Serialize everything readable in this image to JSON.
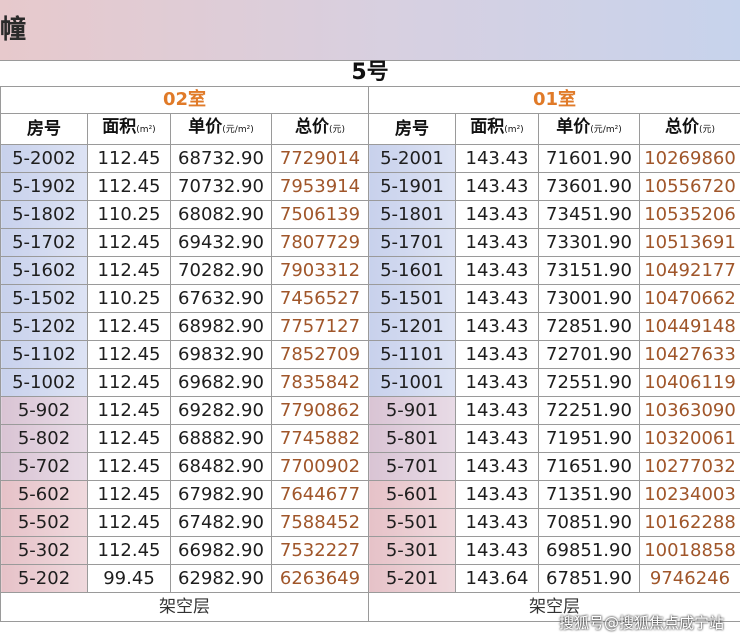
{
  "header": {
    "building_label": "幢",
    "building_number": "5号"
  },
  "units": [
    {
      "name": "02室"
    },
    {
      "name": "01室"
    }
  ],
  "columns": {
    "room": "房号",
    "area": "面积",
    "area_unit": "(m²)",
    "unit_price": "单价",
    "unit_price_unit": "(元/m²)",
    "total_price": "总价",
    "total_price_unit": "(元)"
  },
  "rows": [
    {
      "l_room": "5-2002",
      "l_area": "112.45",
      "l_unit": "68732.90",
      "l_total": "7729014",
      "r_room": "5-2001",
      "r_area": "143.43",
      "r_unit": "71601.90",
      "r_total": "10269860"
    },
    {
      "l_room": "5-1902",
      "l_area": "112.45",
      "l_unit": "70732.90",
      "l_total": "7953914",
      "r_room": "5-1901",
      "r_area": "143.43",
      "r_unit": "73601.90",
      "r_total": "10556720"
    },
    {
      "l_room": "5-1802",
      "l_area": "110.25",
      "l_unit": "68082.90",
      "l_total": "7506139",
      "r_room": "5-1801",
      "r_area": "143.43",
      "r_unit": "73451.90",
      "r_total": "10535206"
    },
    {
      "l_room": "5-1702",
      "l_area": "112.45",
      "l_unit": "69432.90",
      "l_total": "7807729",
      "r_room": "5-1701",
      "r_area": "143.43",
      "r_unit": "73301.90",
      "r_total": "10513691"
    },
    {
      "l_room": "5-1602",
      "l_area": "112.45",
      "l_unit": "70282.90",
      "l_total": "7903312",
      "r_room": "5-1601",
      "r_area": "143.43",
      "r_unit": "73151.90",
      "r_total": "10492177"
    },
    {
      "l_room": "5-1502",
      "l_area": "110.25",
      "l_unit": "67632.90",
      "l_total": "7456527",
      "r_room": "5-1501",
      "r_area": "143.43",
      "r_unit": "73001.90",
      "r_total": "10470662"
    },
    {
      "l_room": "5-1202",
      "l_area": "112.45",
      "l_unit": "68982.90",
      "l_total": "7757127",
      "r_room": "5-1201",
      "r_area": "143.43",
      "r_unit": "72851.90",
      "r_total": "10449148"
    },
    {
      "l_room": "5-1102",
      "l_area": "112.45",
      "l_unit": "69832.90",
      "l_total": "7852709",
      "r_room": "5-1101",
      "r_area": "143.43",
      "r_unit": "72701.90",
      "r_total": "10427633"
    },
    {
      "l_room": "5-1002",
      "l_area": "112.45",
      "l_unit": "69682.90",
      "l_total": "7835842",
      "r_room": "5-1001",
      "r_area": "143.43",
      "r_unit": "72551.90",
      "r_total": "10406119"
    },
    {
      "l_room": "5-902",
      "l_area": "112.45",
      "l_unit": "69282.90",
      "l_total": "7790862",
      "r_room": "5-901",
      "r_area": "143.43",
      "r_unit": "72251.90",
      "r_total": "10363090"
    },
    {
      "l_room": "5-802",
      "l_area": "112.45",
      "l_unit": "68882.90",
      "l_total": "7745882",
      "r_room": "5-801",
      "r_area": "143.43",
      "r_unit": "71951.90",
      "r_total": "10320061"
    },
    {
      "l_room": "5-702",
      "l_area": "112.45",
      "l_unit": "68482.90",
      "l_total": "7700902",
      "r_room": "5-701",
      "r_area": "143.43",
      "r_unit": "71651.90",
      "r_total": "10277032"
    },
    {
      "l_room": "5-602",
      "l_area": "112.45",
      "l_unit": "67982.90",
      "l_total": "7644677",
      "r_room": "5-601",
      "r_area": "143.43",
      "r_unit": "71351.90",
      "r_total": "10234003"
    },
    {
      "l_room": "5-502",
      "l_area": "112.45",
      "l_unit": "67482.90",
      "l_total": "7588452",
      "r_room": "5-501",
      "r_area": "143.43",
      "r_unit": "70851.90",
      "r_total": "10162288"
    },
    {
      "l_room": "5-302",
      "l_area": "112.45",
      "l_unit": "66982.90",
      "l_total": "7532227",
      "r_room": "5-301",
      "r_area": "143.43",
      "r_unit": "69851.90",
      "r_total": "10018858"
    },
    {
      "l_room": "5-202",
      "l_area": "99.45",
      "l_unit": "62982.90",
      "l_total": "6263649",
      "r_room": "5-201",
      "r_area": "143.64",
      "r_unit": "67851.90",
      "r_total": "9746246"
    }
  ],
  "footer": {
    "left": "架空层",
    "right": "架空层"
  },
  "watermark": "搜狐号@搜狐焦点咸宁站",
  "colors": {
    "unit_header": "#e07a28",
    "total_price": "#a0562a",
    "room_bg": "#c8d1ec",
    "header_band_left": "#e7c9cc",
    "header_band_right": "#c7d3ec"
  }
}
